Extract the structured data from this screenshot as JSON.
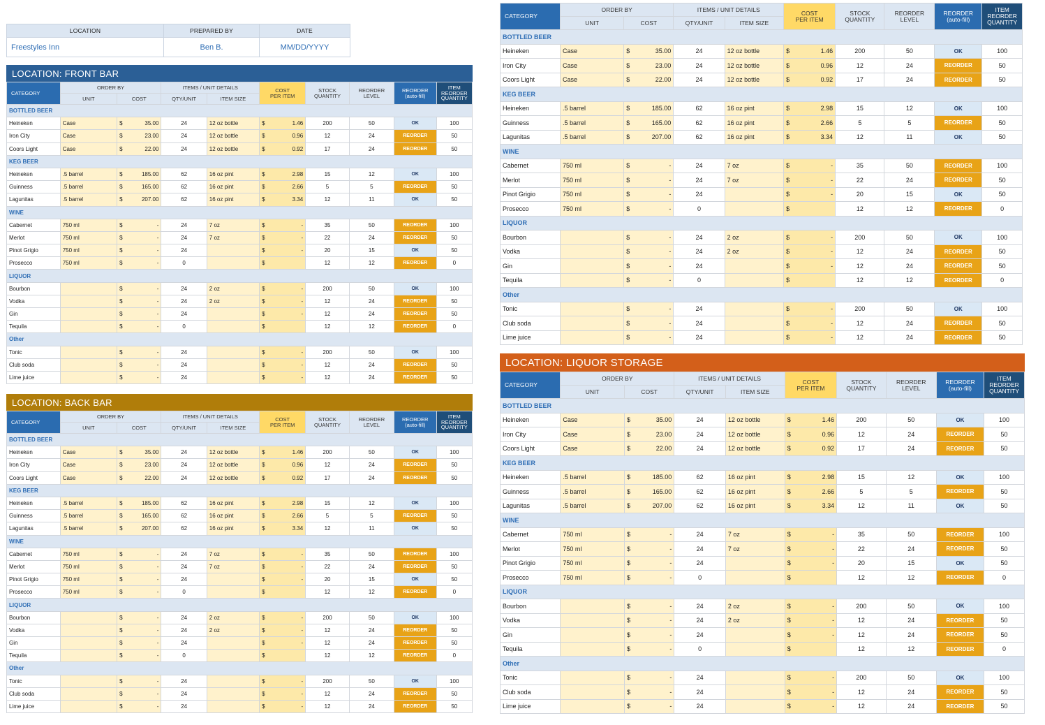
{
  "info": {
    "location_label": "LOCATION",
    "prepared_label": "PREPARED BY",
    "date_label": "DATE",
    "location_value": "Freestyles Inn",
    "prepared_value": "Ben B.",
    "date_value": "MM/DD/YYYY"
  },
  "headers": {
    "category": "CATEGORY",
    "order_by": "ORDER BY",
    "unit": "UNIT",
    "cost": "COST",
    "items_unit_details": "ITEMS / UNIT DETAILS",
    "qty_unit": "QTY/UNIT",
    "item_size": "ITEM SIZE",
    "cost_per_item_1": "COST",
    "cost_per_item_2": "PER ITEM",
    "stock_1": "STOCK",
    "stock_2": "QUANTITY",
    "reorder_level_1": "REORDER",
    "reorder_level_2": "LEVEL",
    "reorder_auto_1": "REORDER",
    "reorder_auto_2": "(auto-fill)",
    "item_reorder_1": "ITEM",
    "item_reorder_2": "REORDER",
    "item_reorder_3": "QUANTITY"
  },
  "colors": {
    "front_bar": "#2b5f96",
    "back_bar": "#b07d0a",
    "liquor_storage": "#d35f1a",
    "ok_flag": "#dae8f5",
    "reorder_flag": "#e8a317"
  },
  "sections": [
    {
      "id": "front",
      "title": "LOCATION: FRONT BAR"
    },
    {
      "id": "back",
      "title": "LOCATION: BACK BAR"
    },
    {
      "id": "top",
      "title": ""
    },
    {
      "id": "storage",
      "title": "LOCATION: LIQUOR STORAGE"
    }
  ],
  "inventory": [
    {
      "type": "cat",
      "name": "BOTTLED BEER"
    },
    {
      "name": "Heineken",
      "unit": "Case",
      "cost": "35.00",
      "qty": "24",
      "size": "12 oz bottle",
      "cpi": "1.46",
      "stock": "200",
      "level": "50",
      "flag": "OK",
      "reorder": "100"
    },
    {
      "name": "Iron City",
      "unit": "Case",
      "cost": "23.00",
      "qty": "24",
      "size": "12 oz bottle",
      "cpi": "0.96",
      "stock": "12",
      "level": "24",
      "flag": "REORDER",
      "reorder": "50"
    },
    {
      "name": "Coors Light",
      "unit": "Case",
      "cost": "22.00",
      "qty": "24",
      "size": "12 oz bottle",
      "cpi": "0.92",
      "stock": "17",
      "level": "24",
      "flag": "REORDER",
      "reorder": "50"
    },
    {
      "type": "cat",
      "name": "KEG BEER"
    },
    {
      "name": "Heineken",
      "unit": ".5 barrel",
      "cost": "185.00",
      "qty": "62",
      "size": "16 oz pint",
      "cpi": "2.98",
      "stock": "15",
      "level": "12",
      "flag": "OK",
      "reorder": "100"
    },
    {
      "name": "Guinness",
      "unit": ".5 barrel",
      "cost": "165.00",
      "qty": "62",
      "size": "16 oz pint",
      "cpi": "2.66",
      "stock": "5",
      "level": "5",
      "flag": "REORDER",
      "reorder": "50"
    },
    {
      "name": "Lagunitas",
      "unit": ".5 barrel",
      "cost": "207.00",
      "qty": "62",
      "size": "16 oz pint",
      "cpi": "3.34",
      "stock": "12",
      "level": "11",
      "flag": "OK",
      "reorder": "50"
    },
    {
      "type": "cat",
      "name": "WINE"
    },
    {
      "name": "Cabernet",
      "unit": "750 ml",
      "cost": "-",
      "qty": "24",
      "size": "7 oz",
      "cpi": "-",
      "stock": "35",
      "level": "50",
      "flag": "REORDER",
      "reorder": "100"
    },
    {
      "name": "Merlot",
      "unit": "750 ml",
      "cost": "-",
      "qty": "24",
      "size": "7 oz",
      "cpi": "-",
      "stock": "22",
      "level": "24",
      "flag": "REORDER",
      "reorder": "50"
    },
    {
      "name": "Pinot Grigio",
      "unit": "750 ml",
      "cost": "-",
      "qty": "24",
      "size": "",
      "cpi": "-",
      "stock": "20",
      "level": "15",
      "flag": "OK",
      "reorder": "50"
    },
    {
      "name": "Prosecco",
      "unit": "750 ml",
      "cost": "-",
      "qty": "0",
      "size": "",
      "cpi": "",
      "stock": "12",
      "level": "12",
      "flag": "REORDER",
      "reorder": "0"
    },
    {
      "type": "cat",
      "name": "LIQUOR"
    },
    {
      "name": "Bourbon",
      "unit": "",
      "cost": "-",
      "qty": "24",
      "size": "2 oz",
      "cpi": "-",
      "stock": "200",
      "level": "50",
      "flag": "OK",
      "reorder": "100"
    },
    {
      "name": "Vodka",
      "unit": "",
      "cost": "-",
      "qty": "24",
      "size": "2 oz",
      "cpi": "-",
      "stock": "12",
      "level": "24",
      "flag": "REORDER",
      "reorder": "50"
    },
    {
      "name": "Gin",
      "unit": "",
      "cost": "-",
      "qty": "24",
      "size": "",
      "cpi": "-",
      "stock": "12",
      "level": "24",
      "flag": "REORDER",
      "reorder": "50"
    },
    {
      "name": "Tequila",
      "unit": "",
      "cost": "-",
      "qty": "0",
      "size": "",
      "cpi": "",
      "stock": "12",
      "level": "12",
      "flag": "REORDER",
      "reorder": "0"
    },
    {
      "type": "cat",
      "name": "Other"
    },
    {
      "name": "Tonic",
      "unit": "",
      "cost": "-",
      "qty": "24",
      "size": "",
      "cpi": "-",
      "stock": "200",
      "level": "50",
      "flag": "OK",
      "reorder": "100"
    },
    {
      "name": "Club soda",
      "unit": "",
      "cost": "-",
      "qty": "24",
      "size": "",
      "cpi": "-",
      "stock": "12",
      "level": "24",
      "flag": "REORDER",
      "reorder": "50"
    },
    {
      "name": "Lime juice",
      "unit": "",
      "cost": "-",
      "qty": "24",
      "size": "",
      "cpi": "-",
      "stock": "12",
      "level": "24",
      "flag": "REORDER",
      "reorder": "50"
    }
  ]
}
